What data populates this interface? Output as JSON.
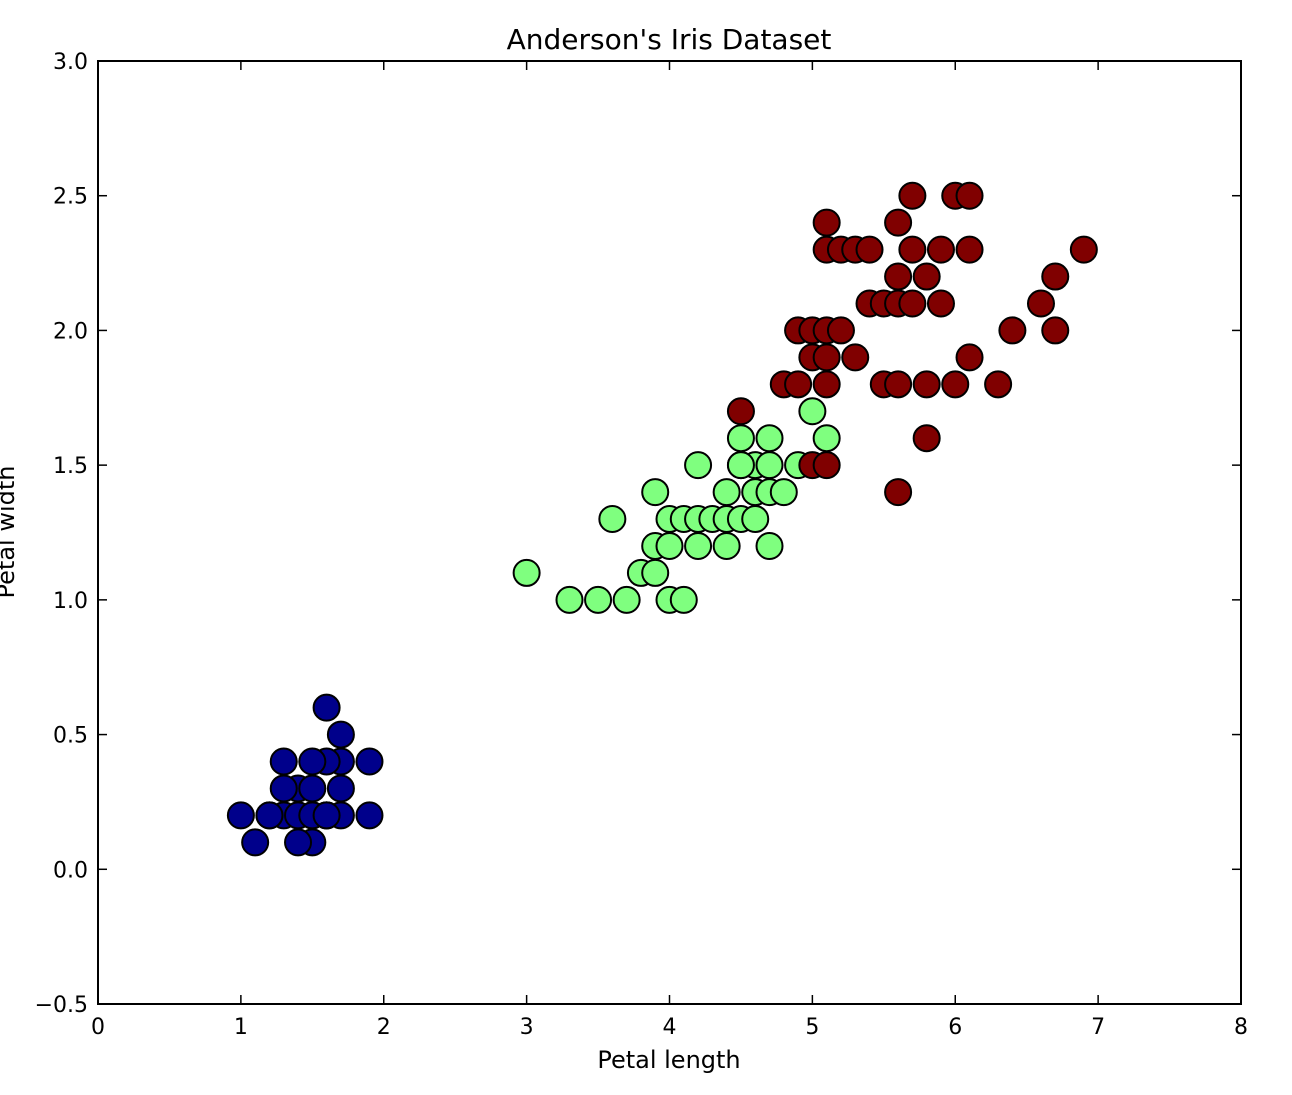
{
  "chart_data": {
    "type": "scatter",
    "title": "Anderson's Iris Dataset",
    "xlabel": "Petal length",
    "ylabel": "Petal width",
    "xlim": [
      0,
      8
    ],
    "ylim": [
      -0.5,
      3.0
    ],
    "xticks": [
      0,
      1,
      2,
      3,
      4,
      5,
      6,
      7,
      8
    ],
    "xtick_labels": [
      "0",
      "1",
      "2",
      "3",
      "4",
      "5",
      "6",
      "7",
      "8"
    ],
    "yticks": [
      -0.5,
      0.0,
      0.5,
      1.0,
      1.5,
      2.0,
      2.5,
      3.0
    ],
    "ytick_labels": [
      "−0.5",
      "0.0",
      "0.5",
      "1.0",
      "1.5",
      "2.0",
      "2.5",
      "3.0"
    ],
    "grid": false,
    "series": [
      {
        "color": "#00008b",
        "points": [
          [
            1.4,
            0.2
          ],
          [
            1.3,
            0.2
          ],
          [
            1.5,
            0.2
          ],
          [
            1.7,
            0.4
          ],
          [
            1.4,
            0.3
          ],
          [
            1.5,
            0.1
          ],
          [
            1.1,
            0.1
          ],
          [
            1.2,
            0.2
          ],
          [
            1.0,
            0.2
          ],
          [
            1.6,
            0.2
          ],
          [
            1.9,
            0.2
          ],
          [
            1.6,
            0.4
          ],
          [
            1.9,
            0.4
          ],
          [
            1.3,
            0.3
          ],
          [
            1.3,
            0.4
          ],
          [
            1.6,
            0.6
          ],
          [
            1.7,
            0.5
          ],
          [
            1.5,
            0.4
          ],
          [
            1.7,
            0.3
          ],
          [
            1.5,
            0.3
          ],
          [
            1.4,
            0.1
          ],
          [
            1.6,
            0.2
          ],
          [
            1.7,
            0.2
          ],
          [
            1.2,
            0.2
          ],
          [
            1.5,
            0.2
          ],
          [
            1.4,
            0.2
          ],
          [
            1.5,
            0.2
          ],
          [
            1.6,
            0.2
          ]
        ]
      },
      {
        "color": "#7fff7f",
        "points": [
          [
            3.0,
            1.1
          ],
          [
            3.3,
            1.0
          ],
          [
            3.5,
            1.0
          ],
          [
            3.6,
            1.3
          ],
          [
            3.7,
            1.0
          ],
          [
            3.8,
            1.1
          ],
          [
            3.9,
            1.1
          ],
          [
            3.9,
            1.2
          ],
          [
            3.9,
            1.4
          ],
          [
            4.0,
            1.0
          ],
          [
            4.0,
            1.3
          ],
          [
            4.0,
            1.2
          ],
          [
            4.1,
            1.0
          ],
          [
            4.1,
            1.3
          ],
          [
            4.2,
            1.2
          ],
          [
            4.2,
            1.3
          ],
          [
            4.2,
            1.5
          ],
          [
            4.3,
            1.3
          ],
          [
            4.4,
            1.2
          ],
          [
            4.4,
            1.3
          ],
          [
            4.4,
            1.4
          ],
          [
            4.5,
            1.3
          ],
          [
            4.5,
            1.5
          ],
          [
            4.5,
            1.6
          ],
          [
            4.6,
            1.3
          ],
          [
            4.6,
            1.4
          ],
          [
            4.6,
            1.5
          ],
          [
            4.7,
            1.2
          ],
          [
            4.7,
            1.4
          ],
          [
            4.7,
            1.5
          ],
          [
            4.7,
            1.6
          ],
          [
            4.8,
            1.4
          ],
          [
            4.9,
            1.5
          ],
          [
            5.0,
            1.7
          ],
          [
            5.1,
            1.6
          ],
          [
            4.5,
            1.5
          ]
        ]
      },
      {
        "color": "#800000",
        "points": [
          [
            4.5,
            1.7
          ],
          [
            4.8,
            1.8
          ],
          [
            4.9,
            1.8
          ],
          [
            4.9,
            2.0
          ],
          [
            5.0,
            1.5
          ],
          [
            5.0,
            1.9
          ],
          [
            5.0,
            2.0
          ],
          [
            5.1,
            1.5
          ],
          [
            5.1,
            1.8
          ],
          [
            5.1,
            1.9
          ],
          [
            5.1,
            2.0
          ],
          [
            5.1,
            2.3
          ],
          [
            5.1,
            2.4
          ],
          [
            5.2,
            2.0
          ],
          [
            5.2,
            2.3
          ],
          [
            5.3,
            1.9
          ],
          [
            5.3,
            2.3
          ],
          [
            5.4,
            2.1
          ],
          [
            5.4,
            2.3
          ],
          [
            5.5,
            1.8
          ],
          [
            5.5,
            2.1
          ],
          [
            5.6,
            1.4
          ],
          [
            5.6,
            1.8
          ],
          [
            5.6,
            2.1
          ],
          [
            5.6,
            2.2
          ],
          [
            5.6,
            2.4
          ],
          [
            5.7,
            2.1
          ],
          [
            5.7,
            2.3
          ],
          [
            5.7,
            2.5
          ],
          [
            5.8,
            1.6
          ],
          [
            5.8,
            1.8
          ],
          [
            5.8,
            2.2
          ],
          [
            5.9,
            2.1
          ],
          [
            5.9,
            2.3
          ],
          [
            6.0,
            1.8
          ],
          [
            6.0,
            2.5
          ],
          [
            6.1,
            1.9
          ],
          [
            6.1,
            2.3
          ],
          [
            6.1,
            2.5
          ],
          [
            6.3,
            1.8
          ],
          [
            6.4,
            2.0
          ],
          [
            6.6,
            2.1
          ],
          [
            6.7,
            2.0
          ],
          [
            6.7,
            2.2
          ],
          [
            6.9,
            2.3
          ]
        ]
      }
    ]
  }
}
